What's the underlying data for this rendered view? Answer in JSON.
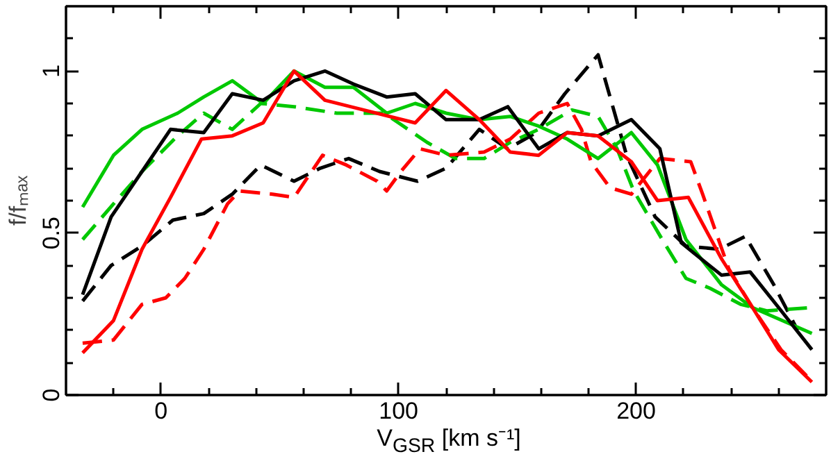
{
  "chart_data": {
    "type": "line",
    "xlabel": "V$_{GSR}$ [km s⁻¹]",
    "ylabel": "f/fₘₐₓ",
    "xlim": [
      -40,
      280
    ],
    "ylim": [
      0,
      1.2
    ],
    "xticks": [
      {
        "value": -20,
        "label": null
      },
      0,
      {
        "value": 20,
        "label": null
      },
      {
        "value": 40,
        "label": null
      },
      {
        "value": 60,
        "label": null
      },
      {
        "value": 80,
        "label": null
      },
      100,
      {
        "value": 120,
        "label": null
      },
      {
        "value": 140,
        "label": null
      },
      {
        "value": 160,
        "label": null
      },
      {
        "value": 180,
        "label": null
      },
      200,
      {
        "value": 220,
        "label": null
      },
      {
        "value": 240,
        "label": null
      },
      {
        "value": 260,
        "label": null
      }
    ],
    "yticks": [
      0,
      {
        "value": 0.1,
        "label": null
      },
      {
        "value": 0.2,
        "label": null
      },
      {
        "value": 0.3,
        "label": null
      },
      {
        "value": 0.4,
        "label": null
      },
      0.5,
      {
        "value": 0.6,
        "label": null
      },
      {
        "value": 0.7,
        "label": null
      },
      {
        "value": 0.8,
        "label": null
      },
      {
        "value": 0.9,
        "label": null
      },
      1,
      {
        "value": 1.1,
        "label": null
      }
    ],
    "grid": false,
    "marker": "none",
    "series": [
      {
        "color": "#000000",
        "line_style": "dashed",
        "x": [
          -33,
          -21,
          -8,
          5,
          18,
          30,
          42,
          56,
          67,
          79,
          92,
          108,
          120,
          134,
          146,
          158,
          170,
          184,
          196,
          208,
          221,
          235,
          246,
          258,
          268
        ],
        "values": [
          0.29,
          0.4,
          0.46,
          0.54,
          0.56,
          0.62,
          0.71,
          0.66,
          0.7,
          0.73,
          0.69,
          0.66,
          0.7,
          0.82,
          0.76,
          0.81,
          0.93,
          1.05,
          0.74,
          0.55,
          0.46,
          0.45,
          0.49,
          0.34,
          0.2
        ]
      },
      {
        "color": "#00c800",
        "line_style": "dashed",
        "x": [
          -33,
          -20,
          -8,
          7,
          18,
          30,
          42,
          56,
          74,
          94,
          100,
          112,
          124,
          136,
          147,
          159,
          173,
          184,
          192,
          199,
          211,
          221,
          231,
          244,
          255,
          274
        ],
        "values": [
          0.48,
          0.59,
          0.69,
          0.8,
          0.87,
          0.82,
          0.9,
          0.89,
          0.87,
          0.87,
          0.84,
          0.78,
          0.73,
          0.73,
          0.78,
          0.82,
          0.88,
          0.86,
          0.76,
          0.63,
          0.48,
          0.36,
          0.33,
          0.28,
          0.26,
          0.27
        ]
      },
      {
        "color": "#ff0000",
        "line_style": "dashed",
        "x": [
          -33,
          -20,
          -8,
          2,
          10,
          18,
          28,
          33,
          47,
          56,
          68,
          78,
          91,
          95,
          101,
          109,
          120,
          136,
          147,
          159,
          171,
          177,
          181,
          189,
          198,
          210,
          223,
          228,
          239,
          249,
          261,
          273
        ],
        "values": [
          0.16,
          0.17,
          0.28,
          0.3,
          0.36,
          0.45,
          0.59,
          0.63,
          0.62,
          0.61,
          0.74,
          0.71,
          0.66,
          0.63,
          0.69,
          0.76,
          0.74,
          0.75,
          0.79,
          0.87,
          0.9,
          0.82,
          0.72,
          0.64,
          0.62,
          0.73,
          0.72,
          0.62,
          0.39,
          0.27,
          0.14,
          0.05
        ]
      },
      {
        "color": "#00c800",
        "line_style": "solid",
        "x": [
          -33,
          -20,
          -8,
          7,
          18,
          30,
          43,
          56,
          69,
          81,
          95,
          107,
          120,
          134,
          147,
          159,
          171,
          184,
          198,
          209,
          221,
          236,
          249,
          274
        ],
        "values": [
          0.58,
          0.74,
          0.82,
          0.87,
          0.92,
          0.97,
          0.9,
          1.0,
          0.95,
          0.95,
          0.87,
          0.9,
          0.87,
          0.85,
          0.86,
          0.83,
          0.79,
          0.73,
          0.81,
          0.71,
          0.48,
          0.34,
          0.27,
          0.19
        ]
      },
      {
        "color": "#000000",
        "line_style": "solid",
        "x": [
          -33,
          -21,
          -8,
          4,
          18,
          30,
          43,
          56,
          69,
          81,
          95,
          107,
          120,
          134,
          146,
          159,
          171,
          184,
          198,
          210,
          219,
          224,
          236,
          248,
          260,
          274
        ],
        "values": [
          0.31,
          0.55,
          0.69,
          0.82,
          0.81,
          0.93,
          0.91,
          0.97,
          1.0,
          0.96,
          0.92,
          0.93,
          0.85,
          0.85,
          0.89,
          0.76,
          0.81,
          0.8,
          0.85,
          0.76,
          0.47,
          0.44,
          0.37,
          0.38,
          0.27,
          0.14
        ]
      },
      {
        "color": "#ff0000",
        "line_style": "solid",
        "x": [
          -33,
          -20,
          -8,
          4,
          17,
          30,
          43,
          56,
          69,
          107,
          120,
          134,
          147,
          159,
          171,
          184,
          198,
          209,
          222,
          236,
          249,
          260,
          274
        ],
        "values": [
          0.13,
          0.23,
          0.45,
          0.61,
          0.79,
          0.8,
          0.84,
          1.0,
          0.91,
          0.84,
          0.94,
          0.85,
          0.75,
          0.74,
          0.81,
          0.8,
          0.72,
          0.6,
          0.61,
          0.42,
          0.27,
          0.14,
          0.04
        ]
      }
    ]
  }
}
